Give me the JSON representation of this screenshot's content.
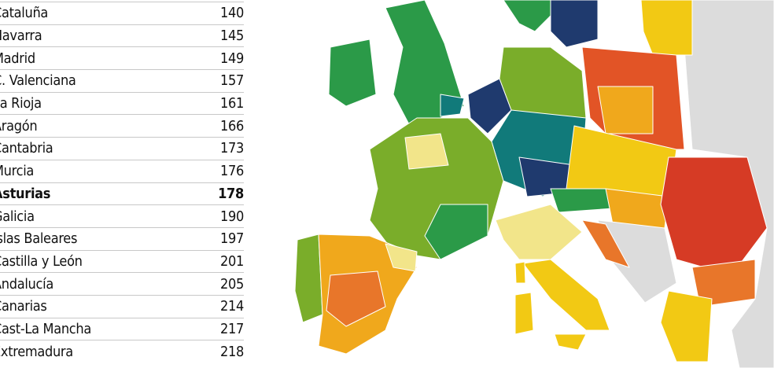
{
  "table": {
    "rows": [
      {
        "region": "Cataluña",
        "value": "140",
        "bold": false
      },
      {
        "region": "Navarra",
        "value": "145",
        "bold": false
      },
      {
        "region": "Madrid",
        "value": "149",
        "bold": false
      },
      {
        "region": "C. Valenciana",
        "value": "157",
        "bold": false
      },
      {
        "region": "La Rioja",
        "value": "161",
        "bold": false
      },
      {
        "region": "Aragón",
        "value": "166",
        "bold": false
      },
      {
        "region": "Cantabria",
        "value": "173",
        "bold": false
      },
      {
        "region": "Murcia",
        "value": "176",
        "bold": false
      },
      {
        "region": "Asturias",
        "value": "178",
        "bold": true
      },
      {
        "region": "Galicia",
        "value": "190",
        "bold": false
      },
      {
        "region": "Islas Baleares",
        "value": "197",
        "bold": false
      },
      {
        "region": "Castilla y León",
        "value": "201",
        "bold": false
      },
      {
        "region": "Andalucía",
        "value": "205",
        "bold": false
      },
      {
        "region": "Canarias",
        "value": "214",
        "bold": false
      },
      {
        "region": "Cast-La Mancha",
        "value": "217",
        "bold": false
      },
      {
        "region": "Extremadura",
        "value": "218",
        "bold": false
      }
    ]
  },
  "map": {
    "colors": {
      "navy": "#1f3a6e",
      "teal": "#117a7a",
      "dark_green": "#2b9a48",
      "green": "#7aad2a",
      "pale_yellow": "#f2e58a",
      "yellow": "#f2c914",
      "orange_yellow": "#f0a81c",
      "orange": "#e8762a",
      "red_orange": "#e25426",
      "red": "#d63b25",
      "non_eu_gray": "#dcdcdc"
    }
  }
}
